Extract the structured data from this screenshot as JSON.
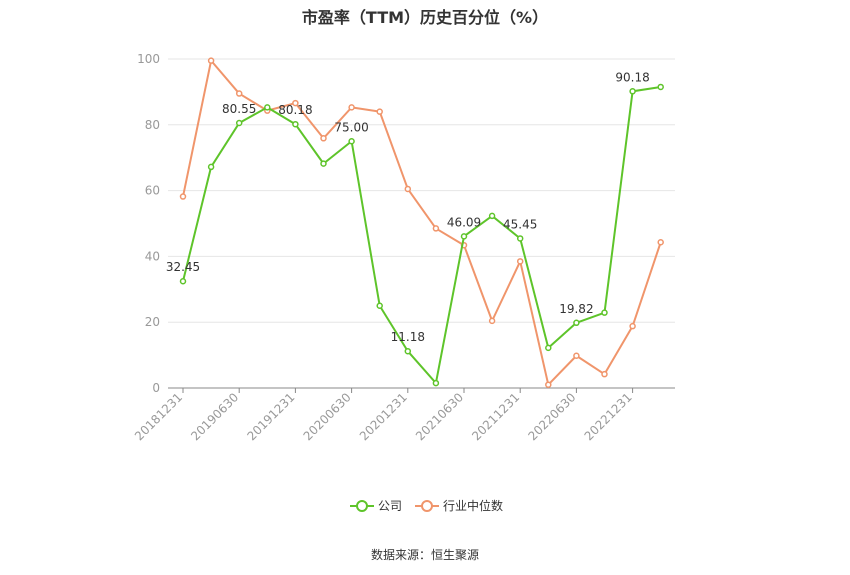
{
  "title": "市盈率（TTM）历史百分位（%）",
  "source": "数据来源：恒生聚源",
  "colors": {
    "company": "#5ec42a",
    "industry": "#f0956b",
    "grid": "#e6e6e6",
    "axis": "#888888",
    "tick_text": "#999999",
    "label_text": "#333333"
  },
  "chart_data": {
    "type": "line",
    "title": "市盈率（TTM）历史百分位（%）",
    "xlabel": "",
    "ylabel": "",
    "ylim": [
      0,
      100
    ],
    "yticks": [
      0,
      20,
      40,
      60,
      80,
      100
    ],
    "grid": true,
    "legend": "bottom",
    "x": [
      "20181231",
      "20190331",
      "20190630",
      "20190930",
      "20191231",
      "20200331",
      "20200630",
      "20200930",
      "20201231",
      "20210331",
      "20210630",
      "20210930",
      "20211231",
      "20220331",
      "20220630",
      "20220930",
      "20221231",
      "20230331"
    ],
    "xtick_labels": [
      "20181231",
      "20190630",
      "20191231",
      "20200630",
      "20201231",
      "20210630",
      "20211231",
      "20220630",
      "20221231"
    ],
    "series": [
      {
        "name": "公司",
        "values": [
          32.45,
          67.2,
          80.55,
          85.3,
          80.18,
          68.2,
          75.0,
          25.0,
          11.18,
          1.5,
          46.09,
          52.3,
          45.45,
          12.2,
          19.82,
          22.9,
          90.18,
          91.5
        ],
        "labels": [
          "32.45",
          "",
          "80.55",
          "",
          "80.18",
          "",
          "75.00",
          "",
          "11.18",
          "",
          "46.09",
          "",
          "45.45",
          "",
          "19.82",
          "",
          "90.18",
          ""
        ]
      },
      {
        "name": "行业中位数",
        "values": [
          58.2,
          99.5,
          89.5,
          84.3,
          86.6,
          75.9,
          85.3,
          84.0,
          60.5,
          48.5,
          43.4,
          20.4,
          38.5,
          1.0,
          9.8,
          4.2,
          18.8,
          44.3
        ]
      }
    ]
  }
}
